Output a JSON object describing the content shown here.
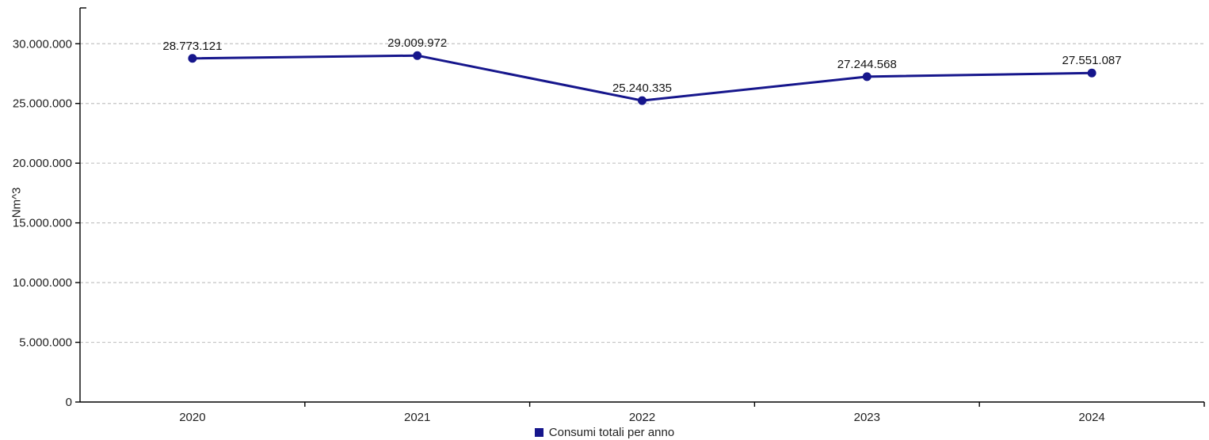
{
  "chart_data": {
    "type": "line",
    "title": "",
    "xlabel": "",
    "ylabel": "Nm^3",
    "categories": [
      "2020",
      "2021",
      "2022",
      "2023",
      "2024"
    ],
    "series": [
      {
        "name": "Consumi totali per anno",
        "values": [
          28773121,
          29009972,
          25240335,
          27244568,
          27551087
        ],
        "data_labels": [
          "28.773.121",
          "29.009.972",
          "25.240.335",
          "27.244.568",
          "27.551.087"
        ]
      }
    ],
    "ylim": [
      0,
      33000000
    ],
    "y_ticks": [
      {
        "value": 0,
        "label": "0"
      },
      {
        "value": 5000000,
        "label": "5.000.000"
      },
      {
        "value": 10000000,
        "label": "10.000.000"
      },
      {
        "value": 15000000,
        "label": "15.000.000"
      },
      {
        "value": 20000000,
        "label": "20.000.000"
      },
      {
        "value": 25000000,
        "label": "25.000.000"
      },
      {
        "value": 30000000,
        "label": "30.000.000"
      }
    ],
    "grid": "horizontal-dashed",
    "legend_position": "bottom-center",
    "colors": {
      "series": "#16168C",
      "grid": "#C4C4C4",
      "axis": "#000000",
      "tick_text": "#1F1F1F",
      "data_label_text": "#141414",
      "background": "#FFFFFF"
    }
  }
}
